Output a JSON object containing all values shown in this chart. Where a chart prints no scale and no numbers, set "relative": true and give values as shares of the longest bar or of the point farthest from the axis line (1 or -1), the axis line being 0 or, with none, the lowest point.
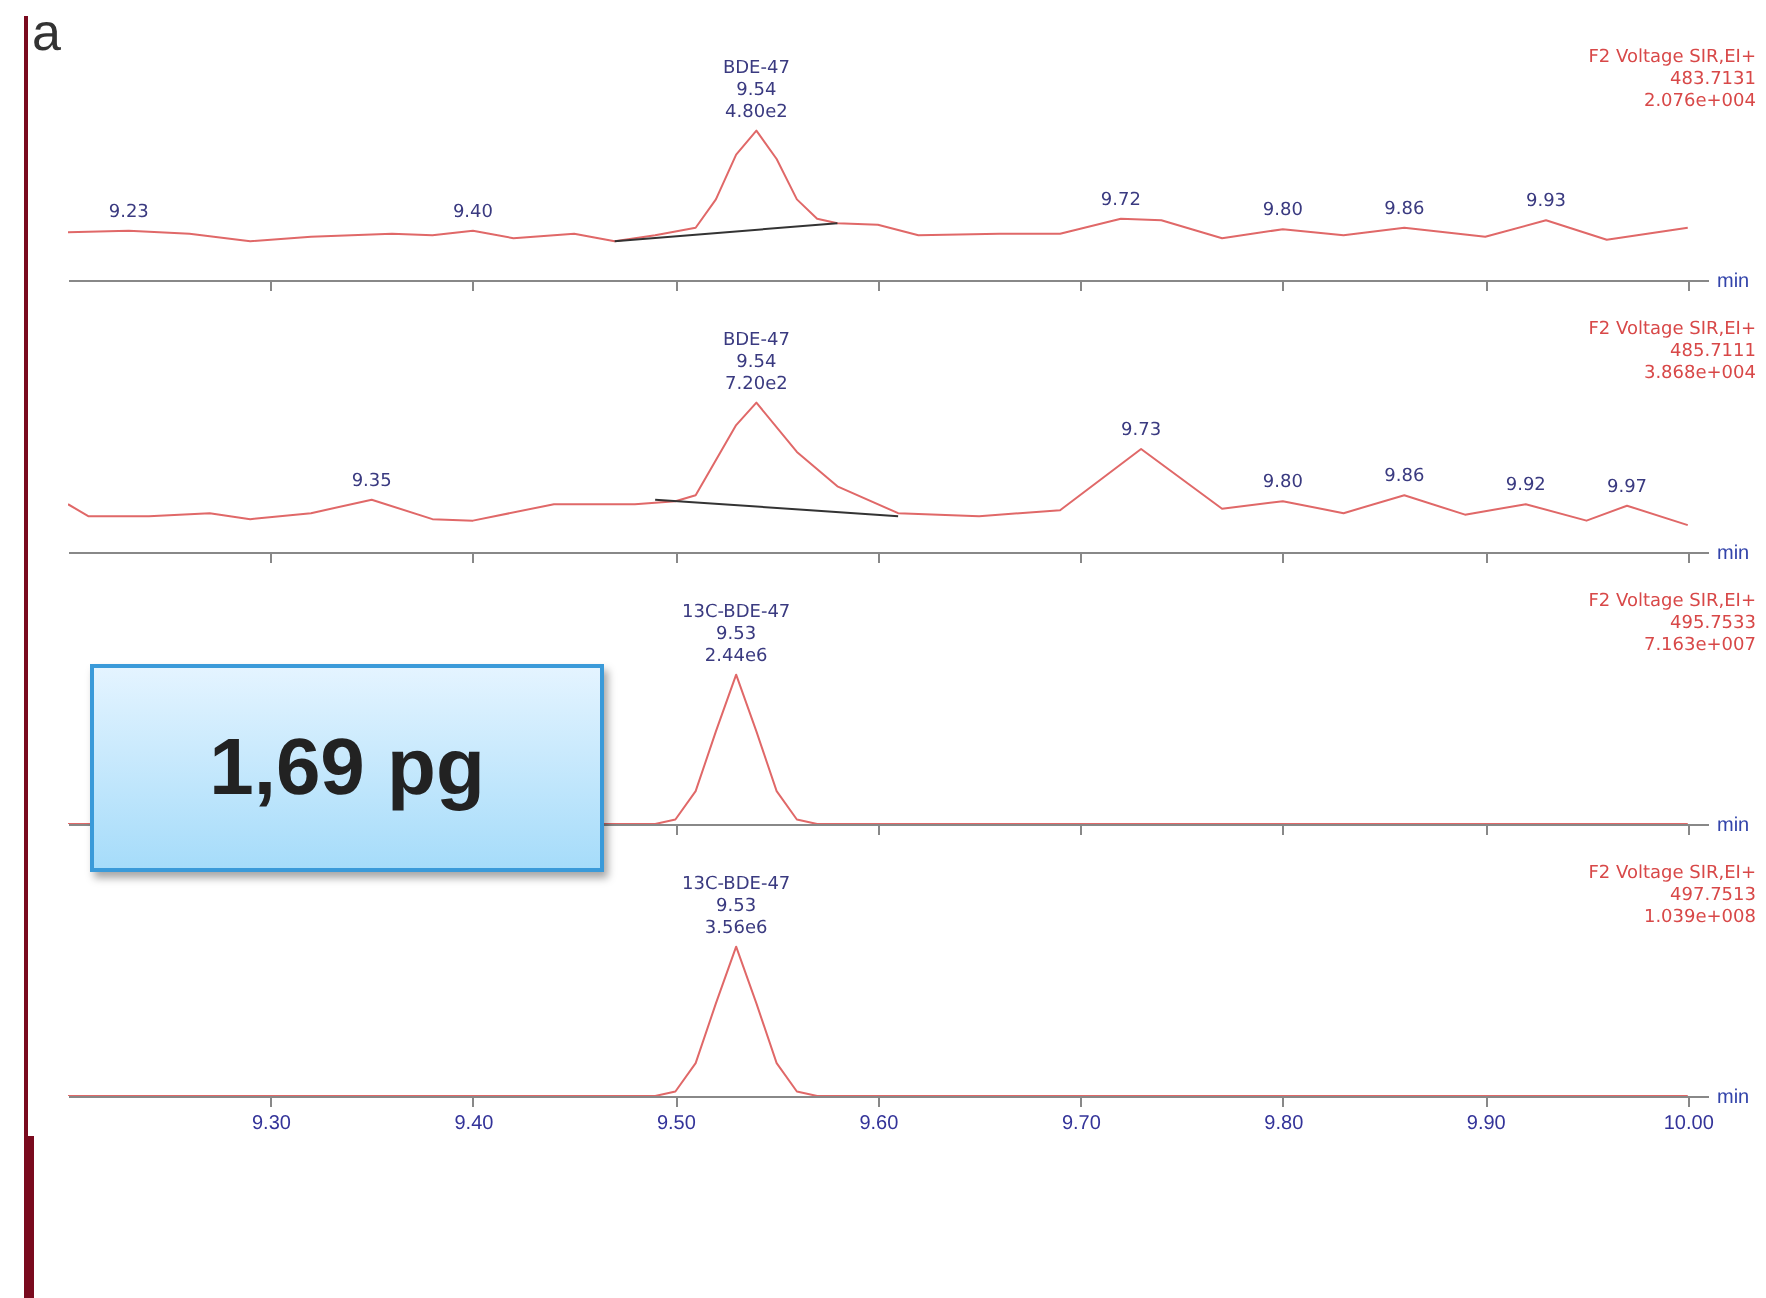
{
  "chart_data": [
    {
      "type": "line",
      "title": "a",
      "xlabel": "min",
      "relative": true,
      "tick_labels": false,
      "xlim": [
        9.2,
        10.01
      ],
      "xticks": [
        {
          "value": 9.3,
          "label": null
        },
        {
          "value": 9.4,
          "label": null
        },
        {
          "value": 9.5,
          "label": null
        },
        {
          "value": 9.6,
          "label": null
        },
        {
          "value": 9.7,
          "label": null
        },
        {
          "value": 9.8,
          "label": null
        },
        {
          "value": 9.9,
          "label": null
        },
        {
          "value": 10.0,
          "label": null
        }
      ],
      "series": [
        {
          "color": "#e06868",
          "x": [
            9.2,
            9.23,
            9.26,
            9.29,
            9.32,
            9.36,
            9.38,
            9.4,
            9.42,
            9.44,
            9.45,
            9.47,
            9.49,
            9.51,
            9.52,
            9.53,
            9.54,
            9.55,
            9.56,
            9.57,
            9.58,
            9.6,
            9.62,
            9.66,
            9.69,
            9.72,
            9.74,
            9.77,
            9.8,
            9.83,
            9.86,
            9.88,
            9.9,
            9.93,
            9.96,
            9.98,
            10.0
          ],
          "values": [
            0.32,
            0.33,
            0.31,
            0.26,
            0.29,
            0.31,
            0.3,
            0.33,
            0.28,
            0.3,
            0.31,
            0.26,
            0.3,
            0.35,
            0.54,
            0.84,
            1,
            0.81,
            0.54,
            0.41,
            0.38,
            0.37,
            0.3,
            0.31,
            0.31,
            0.41,
            0.4,
            0.28,
            0.34,
            0.3,
            0.35,
            0.32,
            0.29,
            0.4,
            0.27,
            0.31,
            0.35
          ]
        },
        {
          "color": "#333333",
          "x": [
            9.47,
            9.58
          ],
          "values": [
            0.26,
            0.38
          ]
        }
      ],
      "annotations": [
        "F2 Voltage SIR,EI+\n483.7131\n2.076e+004",
        {
          "text": "BDE-47\n9.54\n4.80e2",
          "x": 9.54,
          "y": 1
        },
        {
          "text": "9.23",
          "x": 9.23,
          "y": 0.33
        },
        {
          "text": "9.40",
          "x": 9.4,
          "y": 0.33
        },
        {
          "text": "9.72",
          "x": 9.72,
          "y": 0.41
        },
        {
          "text": "9.80",
          "x": 9.8,
          "y": 0.34
        },
        {
          "text": "9.86",
          "x": 9.86,
          "y": 0.35
        },
        {
          "text": "9.93",
          "x": 9.93,
          "y": 0.4
        }
      ]
    },
    {
      "type": "line",
      "xlabel": "min",
      "relative": true,
      "tick_labels": false,
      "xlim": [
        9.2,
        10.01
      ],
      "xticks": [
        {
          "value": 9.3,
          "label": null
        },
        {
          "value": 9.4,
          "label": null
        },
        {
          "value": 9.5,
          "label": null
        },
        {
          "value": 9.6,
          "label": null
        },
        {
          "value": 9.7,
          "label": null
        },
        {
          "value": 9.8,
          "label": null
        },
        {
          "value": 9.9,
          "label": null
        },
        {
          "value": 10.0,
          "label": null
        }
      ],
      "series": [
        {
          "color": "#e06868",
          "x": [
            9.2,
            9.21,
            9.24,
            9.27,
            9.29,
            9.32,
            9.35,
            9.38,
            9.4,
            9.44,
            9.48,
            9.5,
            9.51,
            9.53,
            9.54,
            9.56,
            9.58,
            9.61,
            9.65,
            9.69,
            9.73,
            9.77,
            9.8,
            9.83,
            9.86,
            9.89,
            9.92,
            9.95,
            9.97,
            10.0
          ],
          "values": [
            0.32,
            0.24,
            0.24,
            0.26,
            0.22,
            0.26,
            0.35,
            0.22,
            0.21,
            0.32,
            0.32,
            0.34,
            0.38,
            0.85,
            1,
            0.67,
            0.44,
            0.26,
            0.24,
            0.28,
            0.69,
            0.29,
            0.34,
            0.26,
            0.38,
            0.25,
            0.32,
            0.21,
            0.31,
            0.18
          ]
        },
        {
          "color": "#333333",
          "x": [
            9.49,
            9.61
          ],
          "values": [
            0.35,
            0.24
          ]
        }
      ],
      "annotations": [
        "F2 Voltage SIR,EI+\n485.7111\n3.868e+004",
        {
          "text": "BDE-47\n9.54\n7.20e2",
          "x": 9.54,
          "y": 1
        },
        {
          "text": "9.35",
          "x": 9.35,
          "y": 0.35
        },
        {
          "text": "9.73",
          "x": 9.73,
          "y": 0.69
        },
        {
          "text": "9.80",
          "x": 9.8,
          "y": 0.34
        },
        {
          "text": "9.86",
          "x": 9.86,
          "y": 0.38
        },
        {
          "text": "9.92",
          "x": 9.92,
          "y": 0.32
        },
        {
          "text": "9.97",
          "x": 9.97,
          "y": 0.31
        }
      ]
    },
    {
      "type": "line",
      "xlabel": "min",
      "relative": true,
      "tick_labels": false,
      "xlim": [
        9.2,
        10.01
      ],
      "xticks": [
        {
          "value": 9.3,
          "label": null
        },
        {
          "value": 9.4,
          "label": null
        },
        {
          "value": 9.5,
          "label": null
        },
        {
          "value": 9.6,
          "label": null
        },
        {
          "value": 9.7,
          "label": null
        },
        {
          "value": 9.8,
          "label": null
        },
        {
          "value": 9.9,
          "label": null
        },
        {
          "value": 10.0,
          "label": null
        }
      ],
      "series": [
        {
          "color": "#e06868",
          "x": [
            9.2,
            9.49,
            9.5,
            9.51,
            9.52,
            9.53,
            9.54,
            9.55,
            9.56,
            9.57,
            10.0
          ],
          "values": [
            0,
            0,
            0.03,
            0.22,
            0.62,
            1,
            0.62,
            0.22,
            0.03,
            0,
            0
          ]
        }
      ],
      "annotations": [
        "F2 Voltage SIR,EI+\n495.7533\n7.163e+007",
        "1,69 pg",
        {
          "text": "13C-BDE-47\n9.53\n2.44e6",
          "x": 9.53,
          "y": 1
        }
      ]
    },
    {
      "type": "line",
      "xlabel": "min",
      "relative": true,
      "tick_labels": "x",
      "xlim": [
        9.2,
        10.01
      ],
      "xticks": [
        {
          "value": 9.3,
          "label": "9.30"
        },
        {
          "value": 9.4,
          "label": "9.40"
        },
        {
          "value": 9.5,
          "label": "9.50"
        },
        {
          "value": 9.6,
          "label": "9.60"
        },
        {
          "value": 9.7,
          "label": "9.70"
        },
        {
          "value": 9.8,
          "label": "9.80"
        },
        {
          "value": 9.9,
          "label": "9.90"
        },
        {
          "value": 10.0,
          "label": "10.00"
        }
      ],
      "series": [
        {
          "color": "#e06868",
          "x": [
            9.2,
            9.49,
            9.5,
            9.51,
            9.52,
            9.53,
            9.54,
            9.55,
            9.56,
            9.57,
            10.0
          ],
          "values": [
            0,
            0,
            0.03,
            0.22,
            0.62,
            1,
            0.62,
            0.22,
            0.03,
            0,
            0
          ]
        }
      ],
      "annotations": [
        "F2 Voltage SIR,EI+\n497.7513\n1.039e+008",
        {
          "text": "13C-BDE-47\n9.53\n3.56e6",
          "x": 9.53,
          "y": 1
        }
      ]
    }
  ]
}
